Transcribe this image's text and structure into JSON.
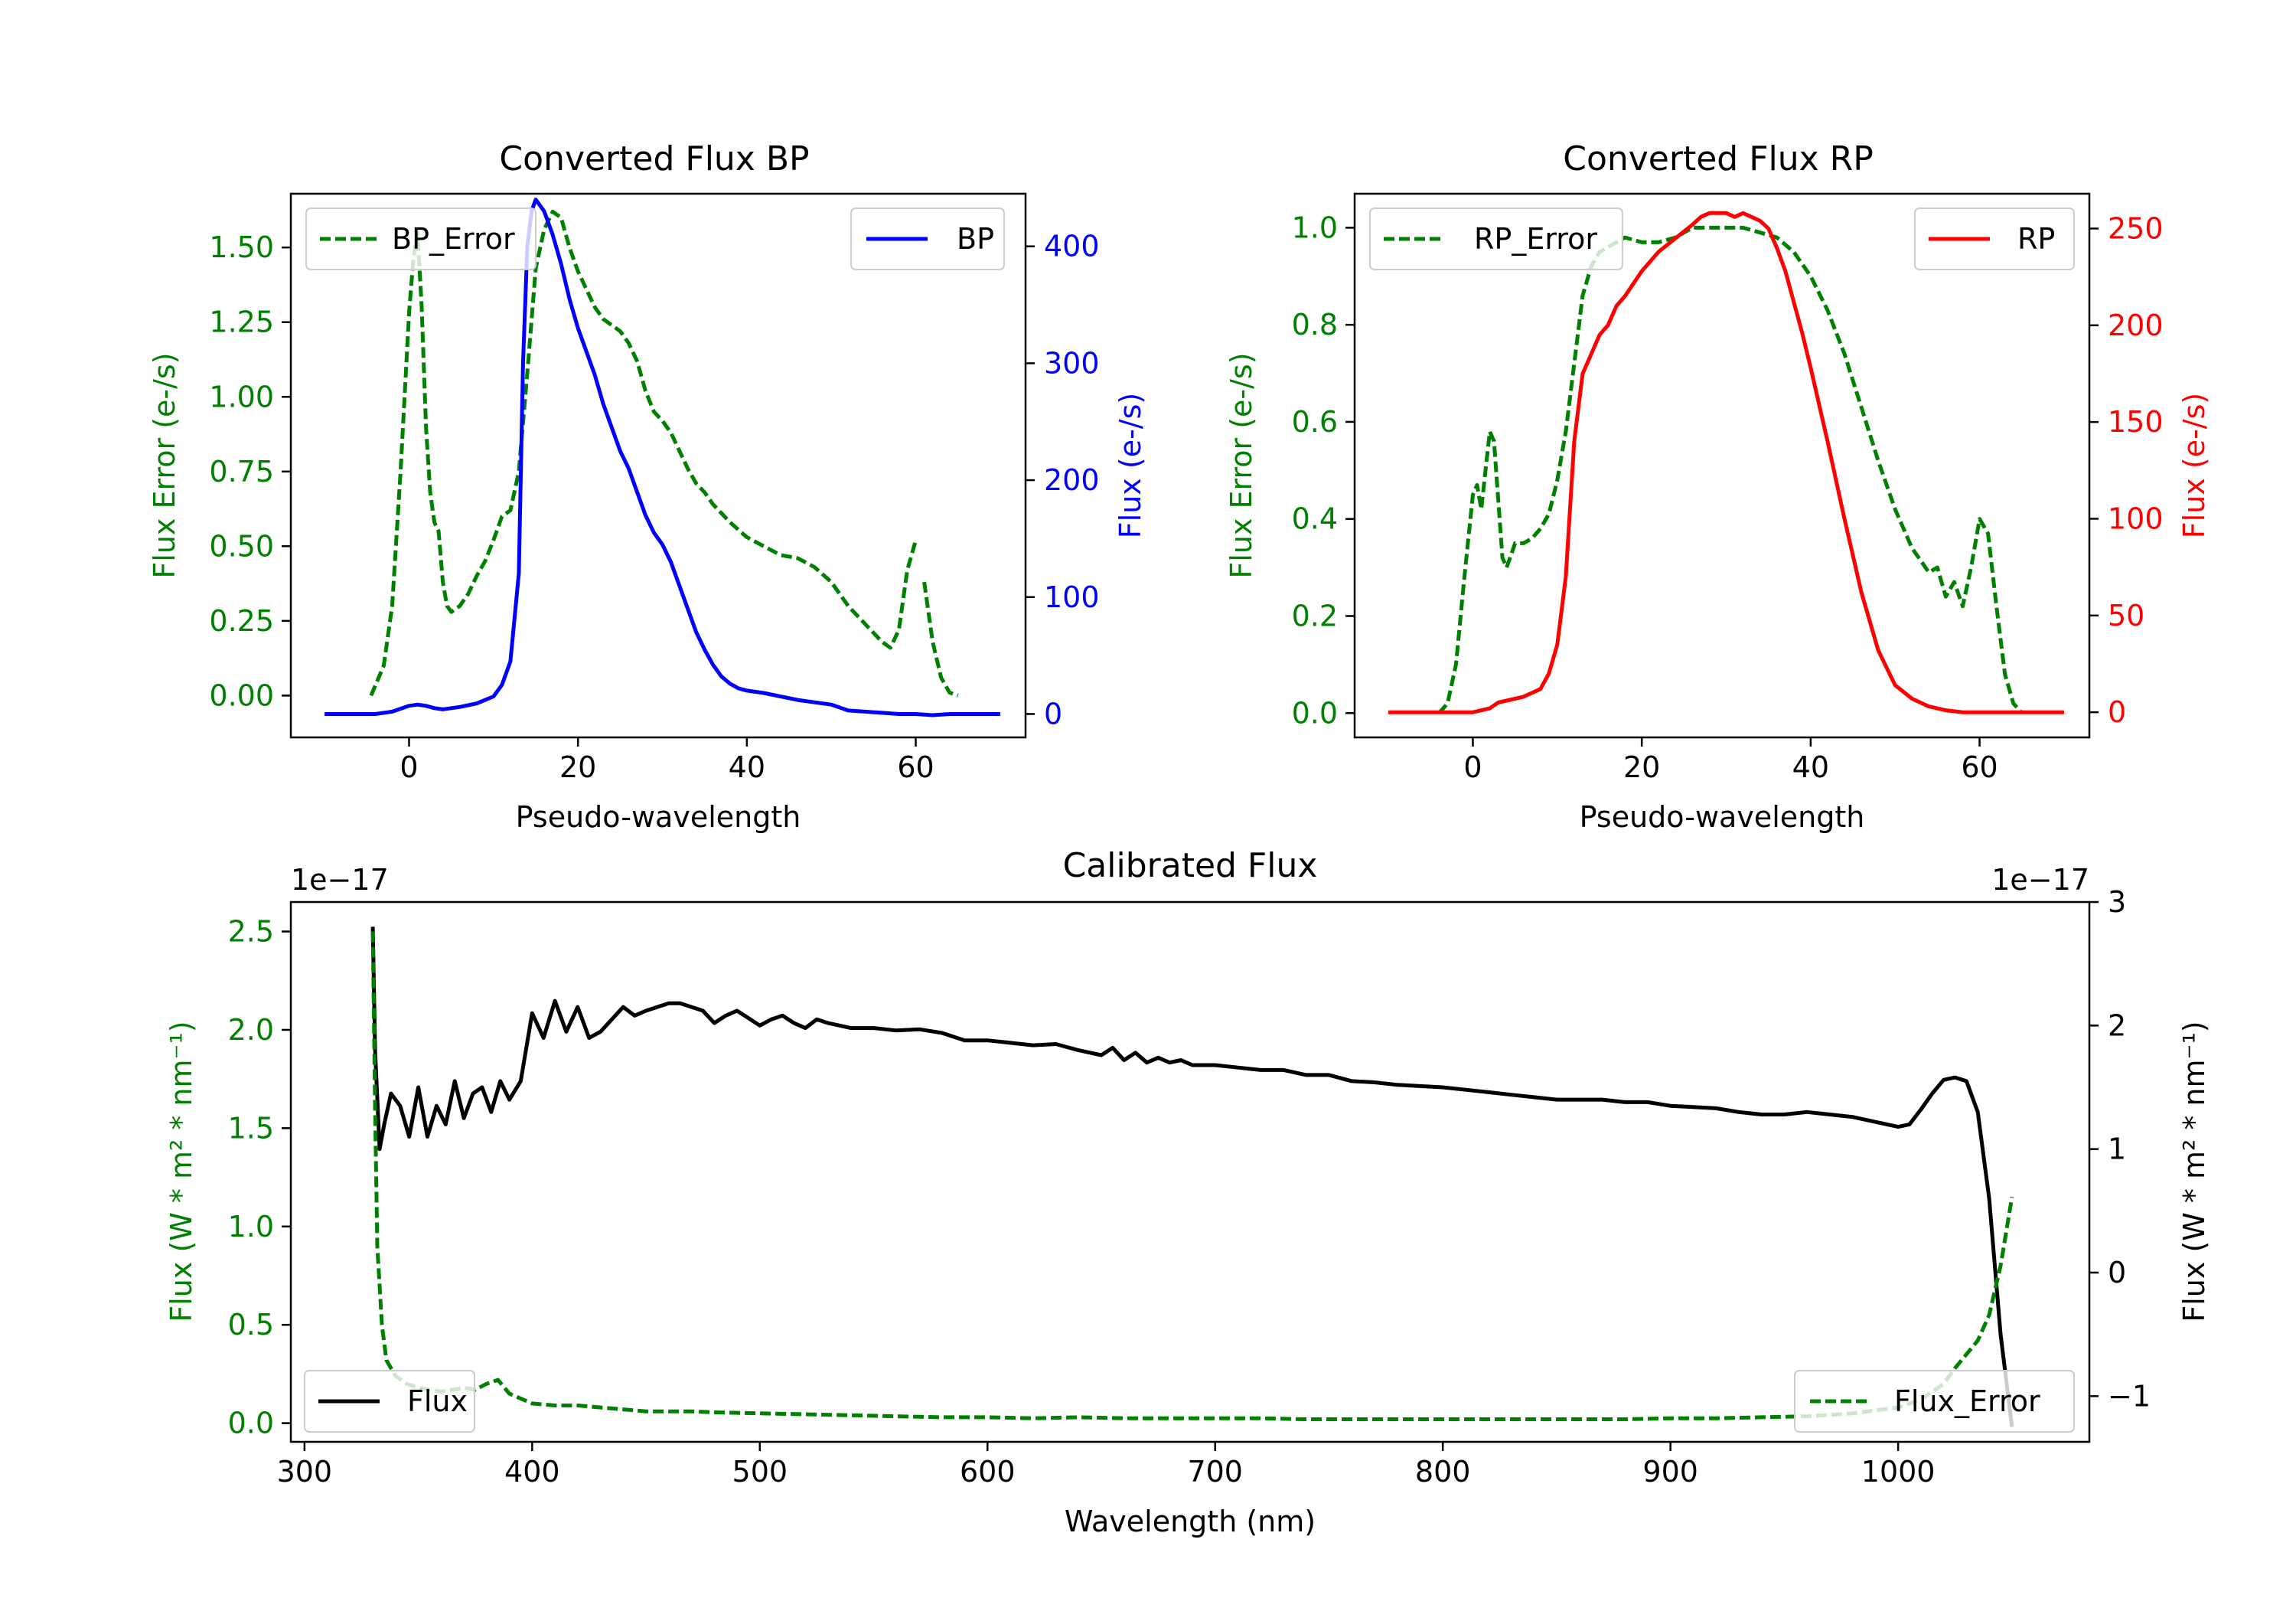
{
  "colors": {
    "bp_error": "#008000",
    "bp": "#0000ff",
    "rp_error": "#008000",
    "rp": "#ff0000",
    "flux": "#000000",
    "flux_error": "#008000",
    "axis": "#000000",
    "left_axis_green": "#008000"
  },
  "chart_data": [
    {
      "id": "bp",
      "type": "line",
      "title": "Converted Flux BP",
      "xlabel": "Pseudo-wavelength",
      "ylabel_left": "Flux Error (e-/s)",
      "ylabel_right": "Flux (e-/s)",
      "xlim": [
        -14,
        73
      ],
      "ylim_left": [
        -0.14,
        1.68
      ],
      "ylim_right": [
        -20,
        445
      ],
      "xticks": [
        0,
        20,
        40,
        60
      ],
      "xtick_labels": [
        "0",
        "20",
        "40",
        "60"
      ],
      "yticks_left": [
        0,
        0.25,
        0.5,
        0.75,
        1.0,
        1.25,
        1.5
      ],
      "ytick_labels_left": [
        "0.00",
        "0.25",
        "0.50",
        "0.75",
        "1.00",
        "1.25",
        "1.50"
      ],
      "yticks_right": [
        0,
        100,
        200,
        300,
        400
      ],
      "ytick_labels_right": [
        "0",
        "100",
        "200",
        "300",
        "400"
      ],
      "legend_left": {
        "label": "BP_Error",
        "placement": "upper-left"
      },
      "legend_right": {
        "label": "BP",
        "placement": "upper-right"
      },
      "series": [
        {
          "name": "BP_Error",
          "axis": "left",
          "style": "dashed",
          "color": "#008000",
          "x": [
            -4.5,
            -3,
            -2,
            -1,
            0,
            0.5,
            1,
            1.5,
            2,
            2.5,
            3,
            3.5,
            4,
            4.5,
            5,
            6,
            7,
            8,
            9,
            10,
            11,
            12,
            13,
            14,
            15,
            16,
            17,
            18,
            19,
            20,
            21,
            22,
            23,
            24,
            25,
            26,
            27,
            28,
            29,
            30,
            31,
            32,
            33,
            34,
            35,
            36,
            37,
            38,
            40,
            42,
            44,
            46,
            48,
            50,
            52,
            54,
            56,
            57,
            58,
            59,
            60,
            61,
            62,
            63,
            64,
            65
          ],
          "y": [
            0,
            0.1,
            0.3,
            0.75,
            1.28,
            1.46,
            1.55,
            1.3,
            0.9,
            0.68,
            0.58,
            0.55,
            0.38,
            0.3,
            0.28,
            0.3,
            0.34,
            0.4,
            0.45,
            0.52,
            0.6,
            0.62,
            0.75,
            1.08,
            1.43,
            1.56,
            1.62,
            1.6,
            1.5,
            1.42,
            1.36,
            1.3,
            1.26,
            1.24,
            1.22,
            1.18,
            1.12,
            1.02,
            0.95,
            0.92,
            0.88,
            0.82,
            0.76,
            0.71,
            0.68,
            0.64,
            0.61,
            0.58,
            0.53,
            0.5,
            0.47,
            0.46,
            0.43,
            0.38,
            0.3,
            0.24,
            0.18,
            0.16,
            0.22,
            0.42,
            0.52,
            0.38,
            0.18,
            0.06,
            0.01,
            0
          ],
          "break_after_x": 60.5
        },
        {
          "name": "BP",
          "axis": "right",
          "style": "solid",
          "color": "#0000ff",
          "x": [
            -10,
            -8,
            -6,
            -4,
            -2,
            0,
            1,
            2,
            3,
            4,
            5,
            6,
            8,
            10,
            11,
            12,
            13,
            13.5,
            14,
            14.5,
            15,
            15.5,
            16,
            17,
            18,
            19,
            20,
            21,
            22,
            23,
            24,
            25,
            26,
            27,
            28,
            29,
            30,
            31,
            32,
            33,
            34,
            35,
            36,
            37,
            38,
            39,
            40,
            42,
            44,
            46,
            48,
            50,
            52,
            54,
            56,
            58,
            60,
            62,
            64,
            66,
            68,
            70
          ],
          "y": [
            0,
            0,
            0,
            0,
            2,
            7,
            8,
            7,
            5,
            4,
            5,
            6,
            9,
            15,
            25,
            45,
            120,
            300,
            400,
            430,
            440,
            435,
            430,
            410,
            385,
            355,
            330,
            310,
            290,
            265,
            245,
            225,
            210,
            190,
            170,
            155,
            145,
            130,
            110,
            90,
            70,
            55,
            42,
            32,
            26,
            22,
            20,
            18,
            15,
            12,
            10,
            8,
            3,
            2,
            1,
            0,
            0,
            -1,
            0,
            0,
            0,
            0
          ]
        }
      ]
    },
    {
      "id": "rp",
      "type": "line",
      "title": "Converted Flux RP",
      "xlabel": "Pseudo-wavelength",
      "ylabel_left": "Flux Error (e-/s)",
      "ylabel_right": "Flux (e-/s)",
      "xlim": [
        -14,
        73
      ],
      "ylim_left": [
        -0.05,
        1.07
      ],
      "ylim_right": [
        -13,
        268
      ],
      "xticks": [
        0,
        20,
        40,
        60
      ],
      "xtick_labels": [
        "0",
        "20",
        "40",
        "60"
      ],
      "yticks_left": [
        0,
        0.2,
        0.4,
        0.6,
        0.8,
        1.0
      ],
      "ytick_labels_left": [
        "0.0",
        "0.2",
        "0.4",
        "0.6",
        "0.8",
        "1.0"
      ],
      "yticks_right": [
        0,
        50,
        100,
        150,
        200,
        250
      ],
      "ytick_labels_right": [
        "0",
        "50",
        "100",
        "150",
        "200",
        "250"
      ],
      "legend_left": {
        "label": "RP_Error",
        "placement": "upper-left"
      },
      "legend_right": {
        "label": "RP",
        "placement": "upper-right"
      },
      "series": [
        {
          "name": "RP_Error",
          "axis": "left",
          "style": "dashed",
          "color": "#008000",
          "x": [
            -4,
            -3,
            -2,
            -1,
            0,
            0.5,
            1,
            1.5,
            2,
            2.5,
            3,
            3.5,
            4,
            5,
            6,
            7,
            8,
            9,
            10,
            11,
            12,
            13,
            14,
            15,
            16,
            18,
            20,
            22,
            24,
            26,
            28,
            30,
            32,
            34,
            36,
            38,
            40,
            42,
            44,
            46,
            48,
            50,
            52,
            54,
            55,
            56,
            57,
            58,
            59,
            60,
            61,
            62,
            63,
            64,
            65
          ],
          "y": [
            0,
            0.02,
            0.1,
            0.28,
            0.45,
            0.47,
            0.42,
            0.5,
            0.58,
            0.56,
            0.44,
            0.32,
            0.3,
            0.35,
            0.35,
            0.36,
            0.38,
            0.41,
            0.48,
            0.58,
            0.72,
            0.86,
            0.92,
            0.95,
            0.96,
            0.98,
            0.97,
            0.97,
            0.98,
            1.0,
            1.0,
            1.0,
            1.0,
            0.99,
            0.98,
            0.95,
            0.9,
            0.83,
            0.74,
            0.63,
            0.52,
            0.42,
            0.34,
            0.29,
            0.3,
            0.24,
            0.27,
            0.22,
            0.3,
            0.4,
            0.37,
            0.22,
            0.08,
            0.02,
            0
          ]
        },
        {
          "name": "RP",
          "axis": "right",
          "style": "solid",
          "color": "#ff0000",
          "x": [
            -10,
            -8,
            -6,
            -4,
            -2,
            0,
            2,
            3,
            4,
            6,
            8,
            9,
            10,
            11,
            12,
            13,
            14,
            15,
            16,
            17,
            18,
            20,
            22,
            24,
            26,
            27,
            28,
            29,
            30,
            31,
            32,
            33,
            34,
            35,
            36,
            37,
            38,
            39,
            40,
            42,
            44,
            46,
            48,
            50,
            52,
            54,
            56,
            58,
            60,
            62,
            64,
            66,
            68,
            70
          ],
          "y": [
            0,
            0,
            0,
            0,
            0,
            0,
            2,
            5,
            6,
            8,
            12,
            20,
            35,
            70,
            140,
            175,
            185,
            195,
            200,
            210,
            215,
            228,
            238,
            245,
            252,
            256,
            258,
            258,
            258,
            256,
            258,
            256,
            254,
            250,
            240,
            228,
            212,
            196,
            178,
            140,
            100,
            62,
            32,
            14,
            7,
            3,
            1,
            0,
            0,
            0,
            0,
            0,
            0,
            0
          ]
        }
      ]
    },
    {
      "id": "calibrated",
      "type": "line",
      "title": "Calibrated Flux",
      "xlabel": "Wavelength (nm)",
      "ylabel_left": "Flux (W * m² * nm⁻¹)",
      "ylabel_right": "Flux (W * m² * nm⁻¹)",
      "offset_left": "1e−17",
      "offset_right": "1e−17",
      "xlim": [
        294,
        1084
      ],
      "ylim_left": [
        -0.095,
        2.65
      ],
      "ylim_right": [
        -1.37,
        3.0
      ],
      "xticks": [
        300,
        400,
        500,
        600,
        700,
        800,
        900,
        1000
      ],
      "xtick_labels": [
        "300",
        "400",
        "500",
        "600",
        "700",
        "800",
        "900",
        "1000"
      ],
      "yticks_left": [
        0,
        0.5,
        1.0,
        1.5,
        2.0,
        2.5
      ],
      "ytick_labels_left": [
        "0.0",
        "0.5",
        "1.0",
        "1.5",
        "2.0",
        "2.5"
      ],
      "yticks_right": [
        -1,
        0,
        1,
        2,
        3
      ],
      "ytick_labels_right": [
        "−1",
        "0",
        "1",
        "2",
        "3"
      ],
      "legend_left": {
        "label": "Flux",
        "placement": "lower-left"
      },
      "legend_right": {
        "label": "Flux_Error",
        "placement": "lower-right"
      },
      "series": [
        {
          "name": "Flux",
          "axis": "right",
          "style": "solid",
          "color": "#000000",
          "x": [
            330,
            331,
            333,
            335,
            338,
            342,
            346,
            350,
            354,
            358,
            362,
            366,
            370,
            374,
            378,
            382,
            386,
            390,
            395,
            400,
            405,
            410,
            415,
            420,
            425,
            430,
            435,
            440,
            445,
            450,
            455,
            460,
            465,
            470,
            475,
            480,
            485,
            490,
            495,
            500,
            505,
            510,
            515,
            520,
            525,
            530,
            540,
            550,
            560,
            570,
            580,
            590,
            600,
            610,
            620,
            630,
            640,
            650,
            655,
            660,
            665,
            670,
            675,
            680,
            685,
            690,
            700,
            710,
            720,
            730,
            740,
            750,
            760,
            770,
            780,
            790,
            800,
            810,
            820,
            830,
            840,
            850,
            860,
            870,
            880,
            890,
            900,
            910,
            920,
            930,
            940,
            950,
            960,
            970,
            980,
            990,
            1000,
            1005,
            1010,
            1015,
            1020,
            1025,
            1030,
            1035,
            1040,
            1045,
            1050
          ],
          "y": [
            2.8,
            1.8,
            1.0,
            1.2,
            1.45,
            1.35,
            1.1,
            1.5,
            1.1,
            1.35,
            1.2,
            1.55,
            1.25,
            1.45,
            1.5,
            1.3,
            1.55,
            1.4,
            1.55,
            2.1,
            1.9,
            2.2,
            1.95,
            2.15,
            1.9,
            1.95,
            2.05,
            2.15,
            2.08,
            2.12,
            2.15,
            2.18,
            2.18,
            2.15,
            2.12,
            2.02,
            2.08,
            2.12,
            2.06,
            2.0,
            2.05,
            2.08,
            2.02,
            1.98,
            2.05,
            2.02,
            1.98,
            1.98,
            1.96,
            1.97,
            1.94,
            1.88,
            1.88,
            1.86,
            1.84,
            1.85,
            1.8,
            1.76,
            1.82,
            1.72,
            1.78,
            1.7,
            1.74,
            1.7,
            1.72,
            1.68,
            1.68,
            1.66,
            1.64,
            1.64,
            1.6,
            1.6,
            1.55,
            1.54,
            1.52,
            1.51,
            1.5,
            1.48,
            1.46,
            1.44,
            1.42,
            1.4,
            1.4,
            1.4,
            1.38,
            1.38,
            1.35,
            1.34,
            1.33,
            1.3,
            1.28,
            1.28,
            1.3,
            1.28,
            1.26,
            1.22,
            1.18,
            1.2,
            1.32,
            1.45,
            1.56,
            1.58,
            1.55,
            1.3,
            0.6,
            -0.5,
            -1.25
          ]
        },
        {
          "name": "Flux_Error",
          "axis": "left",
          "style": "dashed",
          "color": "#008000",
          "x": [
            330,
            331,
            332,
            334,
            336,
            340,
            345,
            350,
            360,
            370,
            375,
            380,
            385,
            390,
            400,
            410,
            420,
            430,
            440,
            450,
            460,
            470,
            480,
            500,
            520,
            540,
            560,
            580,
            600,
            620,
            640,
            660,
            680,
            700,
            720,
            740,
            760,
            780,
            800,
            820,
            840,
            860,
            880,
            900,
            920,
            940,
            960,
            980,
            1000,
            1010,
            1020,
            1025,
            1030,
            1035,
            1040,
            1045,
            1050
          ],
          "y": [
            2.5,
            1.6,
            0.9,
            0.5,
            0.32,
            0.24,
            0.2,
            0.18,
            0.16,
            0.18,
            0.17,
            0.2,
            0.22,
            0.15,
            0.1,
            0.09,
            0.09,
            0.08,
            0.07,
            0.06,
            0.06,
            0.06,
            0.055,
            0.05,
            0.045,
            0.04,
            0.035,
            0.03,
            0.03,
            0.025,
            0.03,
            0.025,
            0.025,
            0.025,
            0.025,
            0.02,
            0.02,
            0.02,
            0.02,
            0.02,
            0.02,
            0.02,
            0.02,
            0.025,
            0.025,
            0.03,
            0.035,
            0.05,
            0.08,
            0.12,
            0.2,
            0.28,
            0.35,
            0.42,
            0.55,
            0.8,
            1.15
          ]
        }
      ]
    }
  ]
}
